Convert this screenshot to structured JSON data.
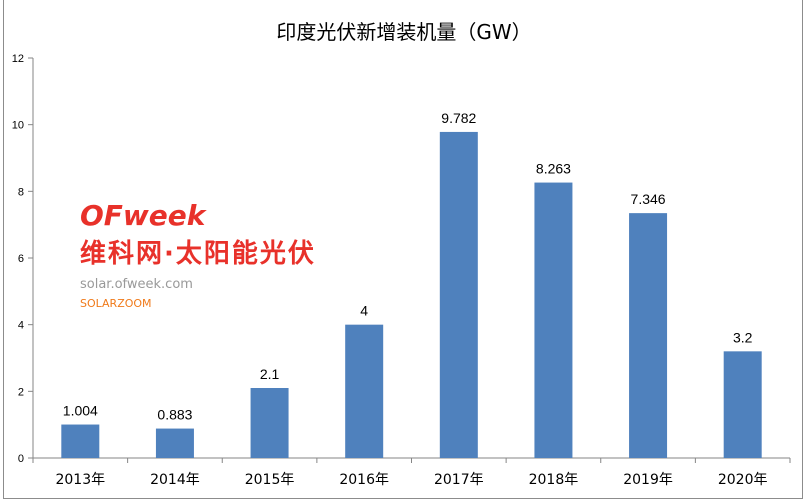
{
  "chart_data": {
    "type": "bar",
    "title": "印度光伏新增装机量（GW）",
    "categories": [
      "2013年",
      "2014年",
      "2015年",
      "2016年",
      "2017年",
      "2018年",
      "2019年",
      "2020年"
    ],
    "values": [
      1.004,
      0.883,
      2.1,
      4,
      9.782,
      8.263,
      7.346,
      3.2
    ],
    "data_labels": [
      "1.004",
      "0.883",
      "2.1",
      "4",
      "9.782",
      "8.263",
      "7.346",
      "3.2"
    ],
    "yticks": [
      "0",
      "2",
      "4",
      "6",
      "8",
      "10",
      "12"
    ],
    "ylim": [
      0,
      12
    ],
    "xlabel": "",
    "ylabel": "",
    "grid": false,
    "legend": "none",
    "bar_color": "#4f81bd"
  },
  "watermark": {
    "brand": "OFweek",
    "site": "solar.ofweek.com",
    "cn_text": "维科网·太阳能光伏",
    "partner": "SOLARZOOM"
  }
}
